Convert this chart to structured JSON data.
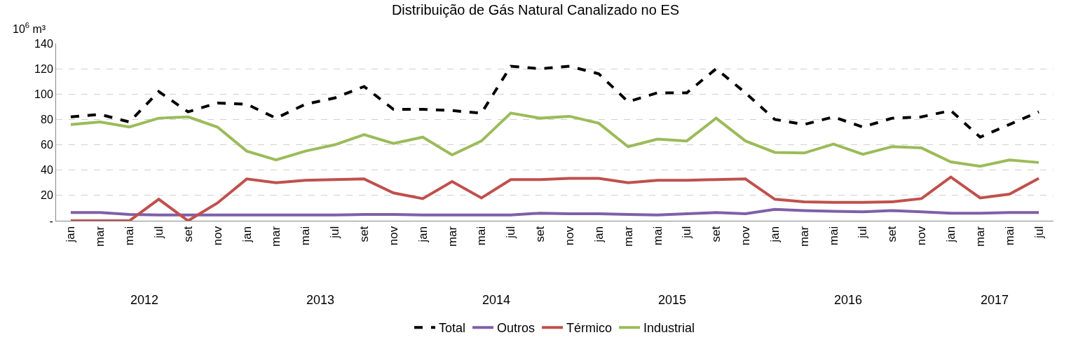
{
  "chart_data": {
    "type": "line",
    "title": "Distribuição de Gás Natural Canalizado no ES",
    "ylabel": "10$^{6}$ m³",
    "categories": [
      "jan",
      "mar",
      "mai",
      "jul",
      "set",
      "nov",
      "jan",
      "mar",
      "mai",
      "jul",
      "set",
      "nov",
      "jan",
      "mar",
      "mai",
      "jul",
      "set",
      "nov",
      "jan",
      "mar",
      "mai",
      "jul",
      "set",
      "nov",
      "jan",
      "mar",
      "mai",
      "jul",
      "set",
      "nov",
      "jan",
      "mar",
      "mai",
      "jul"
    ],
    "annotations": [
      "2012",
      "2013",
      "2014",
      "2015",
      "2016",
      "2017"
    ],
    "series": [
      {
        "name": "Total",
        "color": "#000000",
        "line_style": "dashed",
        "values": [
          82,
          84,
          78,
          102,
          86,
          93,
          92,
          81,
          92,
          97,
          106,
          88,
          88,
          87,
          85,
          122,
          120,
          122,
          116,
          94,
          101,
          101,
          120,
          101,
          80,
          76,
          82,
          74,
          81,
          82,
          87,
          66,
          76,
          86
        ]
      },
      {
        "name": "Outros",
        "color": "#7f5fa8",
        "values": [
          6.5,
          6.5,
          5,
          4.5,
          4.5,
          4.5,
          4.5,
          4.5,
          4.5,
          4.5,
          5,
          5,
          4.5,
          4.5,
          4.5,
          4.5,
          6,
          5.5,
          5.5,
          5,
          4.5,
          5.5,
          6.5,
          5.5,
          9,
          8,
          7.5,
          7,
          8,
          7,
          6,
          6,
          6.5,
          6.5
        ]
      },
      {
        "name": "Térmico",
        "color": "#c0504d",
        "values": [
          0,
          0,
          0,
          17,
          0,
          14,
          33,
          30,
          32,
          32.5,
          33,
          22,
          17.5,
          31,
          18,
          32.5,
          32.5,
          33.5,
          33.5,
          30,
          32,
          32,
          32.5,
          33,
          17,
          15,
          14.5,
          14.5,
          15,
          17.5,
          34.5,
          18,
          21,
          33.5
        ]
      },
      {
        "name": "Industrial",
        "color": "#9bbb59",
        "values": [
          76,
          78,
          74,
          81,
          82,
          74,
          55,
          48,
          55,
          60,
          68,
          61,
          66,
          52,
          63,
          85,
          81,
          82.5,
          77,
          58.5,
          64.5,
          63,
          81,
          63,
          54,
          53.5,
          60.5,
          52.5,
          58.5,
          57.5,
          46.5,
          43,
          48,
          46
        ]
      }
    ],
    "ylim": [
      0,
      140
    ],
    "yticks": [
      {
        "value": 0,
        "label": "-"
      },
      20,
      40,
      60,
      80,
      100,
      120,
      140
    ],
    "grid": "y",
    "legend": "bottom",
    "marker": "none",
    "line_style": "solid"
  }
}
